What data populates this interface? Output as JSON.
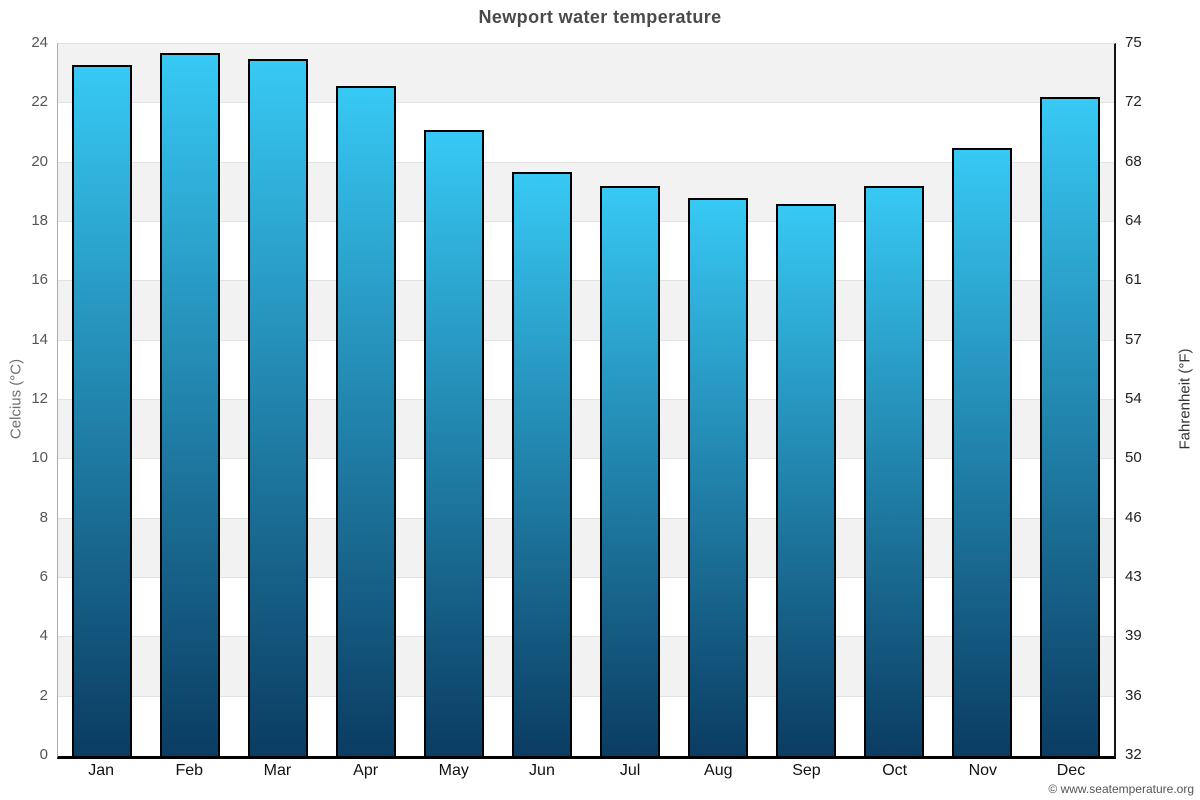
{
  "footer": "© www.seatemperature.org",
  "chart_data": {
    "type": "bar",
    "title": "Newport water temperature",
    "categories": [
      "Jan",
      "Feb",
      "Mar",
      "Apr",
      "May",
      "Jun",
      "Jul",
      "Aug",
      "Sep",
      "Oct",
      "Nov",
      "Dec"
    ],
    "values": [
      23.3,
      23.7,
      23.5,
      22.6,
      21.1,
      19.7,
      19.2,
      18.8,
      18.6,
      19.2,
      20.5,
      22.2
    ],
    "ylabel_left": "Celcius (°C)",
    "ylabel_right": "Fahrenheit (°F)",
    "ylim": [
      0,
      24
    ],
    "yticks_celsius": [
      0,
      2,
      4,
      6,
      8,
      10,
      12,
      14,
      16,
      18,
      20,
      22,
      24
    ],
    "yticks_fahrenheit": [
      32,
      36,
      39,
      43,
      46,
      50,
      54,
      57,
      61,
      64,
      68,
      72,
      75
    ],
    "legend": "none",
    "grid": "alternating-horizontal-bands",
    "colors": {
      "bar_gradient_top": "#37c9f4",
      "bar_gradient_bottom": "#0b3c62",
      "bar_border": "#000000",
      "band_gray": "#f2f2f2",
      "band_white": "#ffffff",
      "gridline": "#e2e2e2",
      "title_text": "#4a4a4a"
    }
  }
}
